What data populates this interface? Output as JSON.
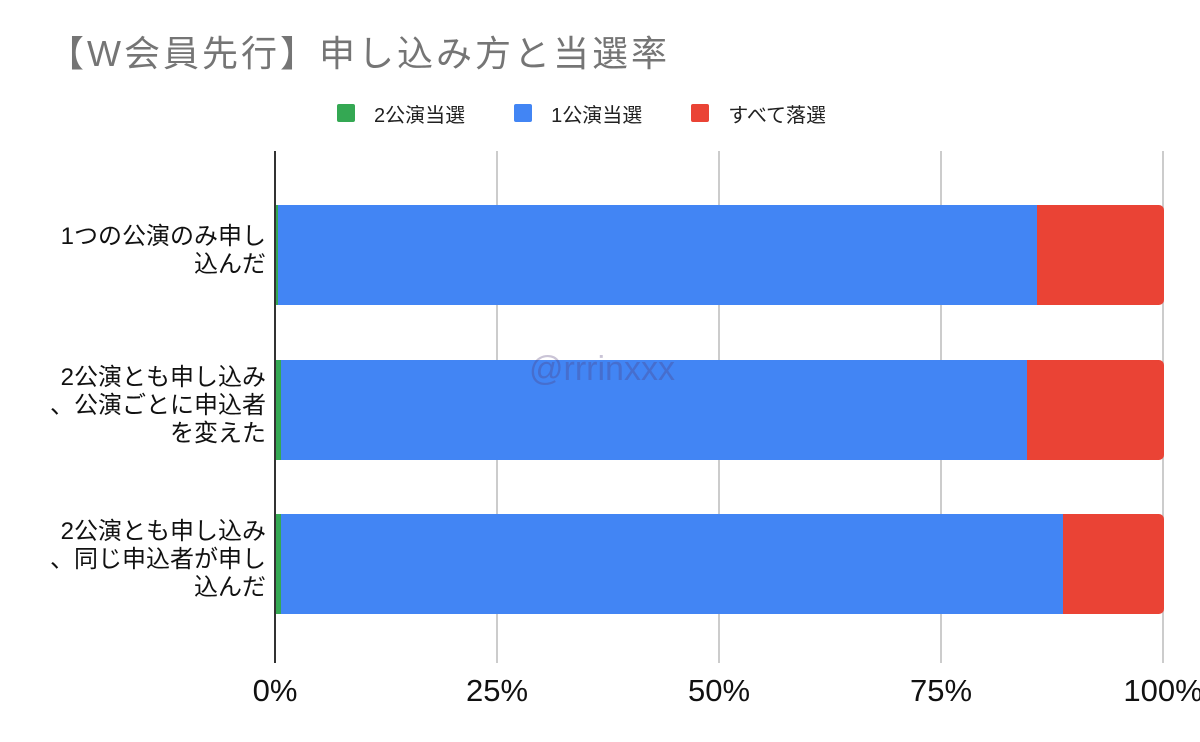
{
  "chart_data": {
    "type": "bar",
    "stacked": true,
    "orientation": "horizontal",
    "title": "【W会員先行】申し込み方と当選率",
    "watermark": "@rrrinxxx",
    "categories": [
      "1つの公演のみ申し込んだ",
      "2公演とも申し込み、公演ごとに申込者を変えた",
      "2公演とも申し込み、同じ申込者が申し込んだ"
    ],
    "category_lines": [
      [
        "1つの公演のみ申し",
        "込んだ"
      ],
      [
        "2公演とも申し込み",
        "、公演ごとに申込者",
        "を変えた"
      ],
      [
        "2公演とも申し込み",
        "、同じ申込者が申し",
        "込んだ"
      ]
    ],
    "series": [
      {
        "name": "2公演当選",
        "color": "#34a853",
        "values": [
          0.2,
          0.6,
          0.6
        ]
      },
      {
        "name": "1公演当選",
        "color": "#4285f4",
        "values": [
          85.5,
          84.0,
          88.0
        ]
      },
      {
        "name": "すべて落選",
        "color": "#ea4335",
        "values": [
          14.3,
          15.4,
          11.4
        ]
      }
    ],
    "x_ticks": [
      "0%",
      "25%",
      "50%",
      "75%",
      "100%"
    ],
    "xlim": [
      0,
      100
    ],
    "legend_position": "top",
    "grid": true
  }
}
